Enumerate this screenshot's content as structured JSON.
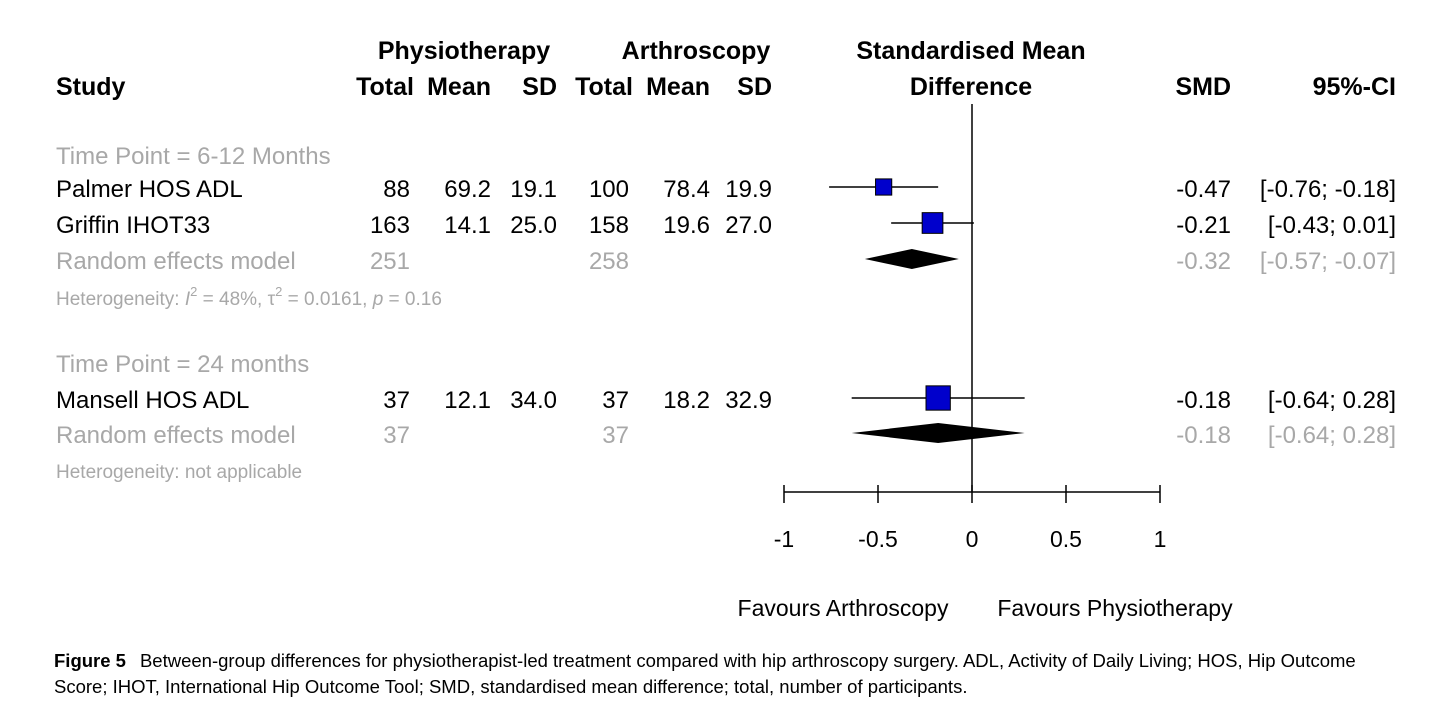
{
  "chart_data": {
    "type": "forest",
    "columns": {
      "study": "Study",
      "group1": "Physiotherapy",
      "group2": "Arthroscopy",
      "total": "Total",
      "mean": "Mean",
      "sd": "SD",
      "effect_line1": "Standardised Mean",
      "effect_line2": "Difference",
      "smd": "SMD",
      "ci": "95%-CI"
    },
    "subgroups": [
      {
        "label": "Time Point = 6-12 Months",
        "studies": [
          {
            "name": "Palmer HOS ADL",
            "total1": "88",
            "mean1": "69.2",
            "sd1": "19.1",
            "total2": "100",
            "mean2": "78.4",
            "sd2": "19.9",
            "smd_text": "-0.47",
            "ci_text": "[-0.76; -0.18]",
            "smd": -0.47,
            "lower": -0.76,
            "upper": -0.18,
            "weight": 0.9
          },
          {
            "name": "Griffin IHOT33",
            "total1": "163",
            "mean1": "14.1",
            "sd1": "25.0",
            "total2": "158",
            "mean2": "19.6",
            "sd2": "27.0",
            "smd_text": "-0.21",
            "ci_text": "[-0.43; 0.01]",
            "smd": -0.21,
            "lower": -0.43,
            "upper": 0.01,
            "weight": 1.15
          }
        ],
        "model": {
          "name": "Random effects model",
          "total1": "251",
          "total2": "258",
          "smd_text": "-0.32",
          "ci_text": "[-0.57; -0.07]",
          "smd": -0.32,
          "lower": -0.57,
          "upper": -0.07
        },
        "heterogeneity": {
          "lead": "Heterogeneity: ",
          "i_sym": "I",
          "i_val": " = 48%, ",
          "tau_sym": "τ",
          "tau_val": " = 0.0161, ",
          "p_sym": "p",
          "p_val": " = 0.16"
        }
      },
      {
        "label": "Time Point = 24 months",
        "studies": [
          {
            "name": "Mansell HOS ADL",
            "total1": "37",
            "mean1": "12.1",
            "sd1": "34.0",
            "total2": "37",
            "mean2": "18.2",
            "sd2": "32.9",
            "smd_text": "-0.18",
            "ci_text": "[-0.64; 0.28]",
            "smd": -0.18,
            "lower": -0.64,
            "upper": 0.28,
            "weight": 1.35
          }
        ],
        "model": {
          "name": "Random effects model",
          "total1": "37",
          "total2": "37",
          "smd_text": "-0.18",
          "ci_text": "[-0.64; 0.28]",
          "smd": -0.18,
          "lower": -0.64,
          "upper": 0.28
        },
        "heterogeneity": {
          "text": "Heterogeneity: not applicable"
        }
      }
    ],
    "x_axis": {
      "ticks": [
        -1,
        -0.5,
        0,
        0.5,
        1
      ],
      "tick_labels": [
        "-1",
        "-0.5",
        "0",
        "0.5",
        "1"
      ],
      "xlim": [
        -1,
        1
      ]
    },
    "favours_left": "Favours Arthroscopy",
    "favours_right": "Favours Physiotherapy",
    "colors": {
      "square": "#0000cc",
      "diamond": "#000000",
      "grey_text": "#a8a8a8"
    }
  },
  "caption": {
    "label": "Figure 5",
    "text": "Between-group differences for physiotherapist-led treatment compared with hip arthroscopy surgery. ADL, Activity of Daily Living; HOS, Hip Outcome Score; IHOT, International Hip Outcome Tool; SMD, standardised mean difference; total, number of participants."
  }
}
